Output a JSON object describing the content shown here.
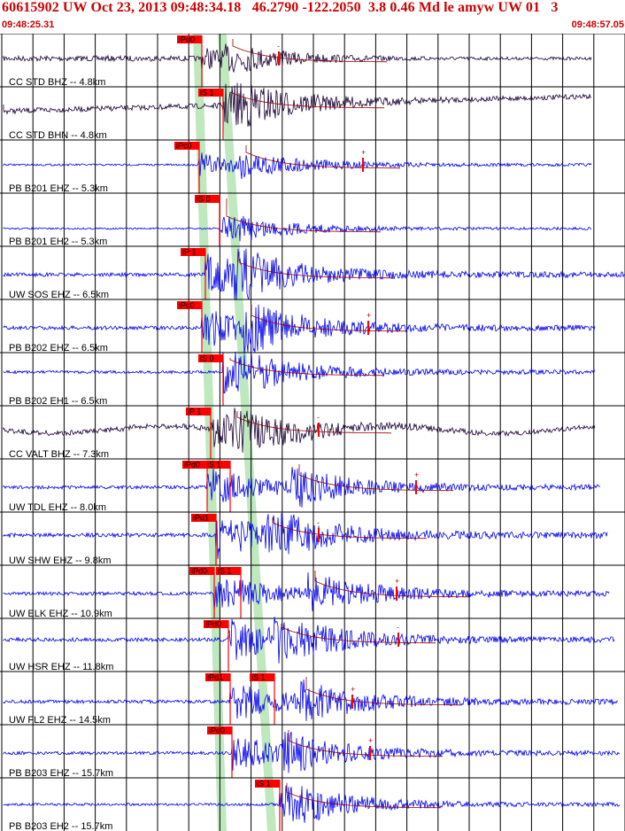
{
  "header": {
    "title": "60615902 UW Oct 23, 2013 09:48:34.18   46.2790 -122.2050  3.8 0.46 Md le amyw UW 01   3",
    "start_time": "09:48:25.31",
    "end_time": "09:48:57.05"
  },
  "colors": {
    "accent": "#cc0000",
    "trace_blue": "#0000ee",
    "trace_dark": "#1a0033",
    "pick_red": "#ff0000",
    "arrival_band": "#b8e6b8",
    "grid": "#000000"
  },
  "traces": [
    {
      "label": "CC STD BHZ -- 4.8km",
      "color": "dark",
      "picks": [
        "iPd0"
      ],
      "coda": "-"
    },
    {
      "label": "CC STD BHN -- 4.8km",
      "color": "dark",
      "picks": [
        "iS 1"
      ],
      "coda": ""
    },
    {
      "label": "PB B201 EHZ -- 5.3km",
      "color": "blue",
      "picks": [
        "iPc0"
      ],
      "coda": "+"
    },
    {
      "label": "PB B201 EH2 -- 5.3km",
      "color": "blue",
      "picks": [
        "iS 0"
      ],
      "coda": ""
    },
    {
      "label": "UW SOS EHZ -- 6.5km",
      "color": "blue",
      "picks": [
        "iP 1"
      ],
      "coda": ""
    },
    {
      "label": "PB B202 EHZ -- 6.5km",
      "color": "blue",
      "picks": [
        "iPc0"
      ],
      "coda": "+"
    },
    {
      "label": "PB B202 EH1 -- 6.5km",
      "color": "blue",
      "picks": [
        "iS 0"
      ],
      "coda": ""
    },
    {
      "label": "CC VALT BHZ -- 7.3km",
      "color": "dark",
      "picks": [
        "iP 1"
      ],
      "coda": "-"
    },
    {
      "label": "UW TDL EHZ -- 8.0km",
      "color": "blue",
      "picks": [
        "iPd0",
        "iS 1"
      ],
      "coda": "+"
    },
    {
      "label": "UW SHW EHZ -- 9.8km",
      "color": "blue",
      "picks": [
        "iPd1"
      ],
      "coda": "-"
    },
    {
      "label": "UW ELK EHZ -- 10.9km",
      "color": "blue",
      "picks": [
        "iPd0",
        "iS 1"
      ],
      "coda": "+"
    },
    {
      "label": "UW HSR EHZ -- 11.8km",
      "color": "blue",
      "picks": [
        "iPd0"
      ],
      "coda": "-"
    },
    {
      "label": "UW FL2 EHZ -- 14.5km",
      "color": "blue",
      "picks": [
        "iPd1",
        "iS 1"
      ],
      "coda": "+"
    },
    {
      "label": "PB B203 EHZ -- 15.7km",
      "color": "blue",
      "picks": [
        "iPd0"
      ],
      "coda": "+"
    },
    {
      "label": "PB B203 EH2 -- 15.7km",
      "color": "blue",
      "picks": [
        "iS 1"
      ],
      "coda": ""
    }
  ]
}
